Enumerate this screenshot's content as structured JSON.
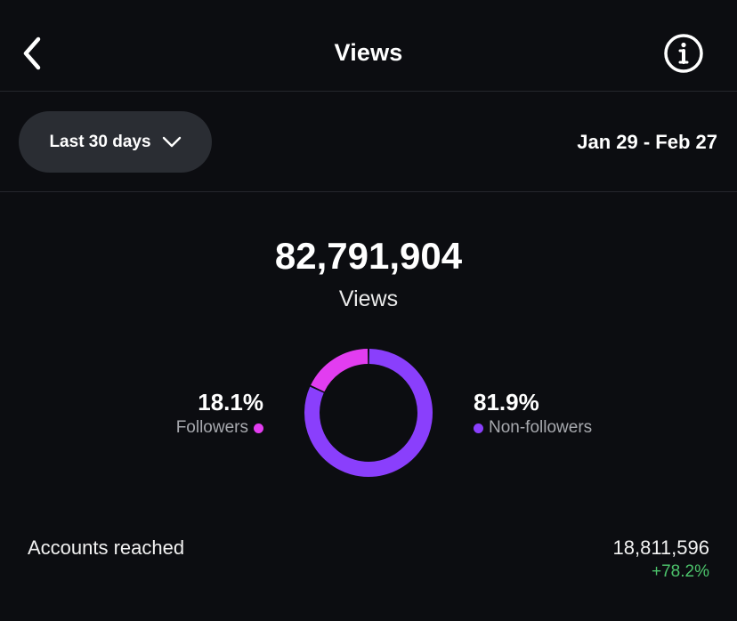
{
  "header": {
    "title": "Views",
    "back_icon": "chevron-left-icon",
    "info_icon": "info-icon"
  },
  "filters": {
    "range_label": "Last 30 days",
    "range_icon": "chevron-down-icon",
    "date_range": "Jan 29 - Feb 27"
  },
  "summary": {
    "total": "82,791,904",
    "label": "Views"
  },
  "chart_data": {
    "type": "pie",
    "categories": [
      "Followers",
      "Non-followers"
    ],
    "values": [
      18.1,
      81.9
    ],
    "labels": [
      "18.1%",
      "81.9%"
    ],
    "colors": [
      "#e23df0",
      "#8a3ffc"
    ],
    "style": "donut"
  },
  "segments": {
    "followers": {
      "percent": "18.1%",
      "name": "Followers",
      "color": "#e23df0"
    },
    "non_followers": {
      "percent": "81.9%",
      "name": "Non-followers",
      "color": "#8a3ffc"
    }
  },
  "accounts_reached": {
    "label": "Accounts reached",
    "value": "18,811,596",
    "change": "+78.2%",
    "change_color": "#4cc36b"
  }
}
